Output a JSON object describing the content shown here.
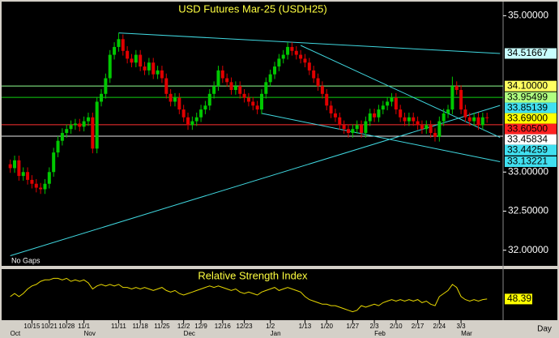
{
  "chart_data": {
    "type": "candlestick",
    "title": "USD Futures Mar-25  (USDH25)",
    "note": "No Gaps",
    "x_unit_label": "Day",
    "up_color": "#00c800",
    "down_color": "#e00000",
    "categories": [
      null,
      null,
      null,
      null,
      null,
      "10/15",
      null,
      null,
      null,
      "10/21",
      null,
      null,
      null,
      "10/28",
      null,
      null,
      null,
      "11/1",
      null,
      null,
      null,
      null,
      null,
      null,
      null,
      "11/11",
      null,
      null,
      null,
      null,
      "11/18",
      null,
      null,
      null,
      null,
      "11/25",
      null,
      null,
      null,
      null,
      "12/2",
      null,
      null,
      null,
      "12/9",
      null,
      null,
      null,
      null,
      "12/16",
      null,
      null,
      null,
      null,
      "12/23",
      null,
      null,
      null,
      null,
      null,
      "1/2",
      null,
      null,
      null,
      null,
      null,
      null,
      null,
      "1/13",
      null,
      null,
      null,
      null,
      "1/20",
      null,
      null,
      null,
      null,
      null,
      "1/27",
      null,
      null,
      null,
      null,
      "2/3",
      null,
      null,
      null,
      null,
      "2/10",
      null,
      null,
      null,
      null,
      "2/17",
      null,
      null,
      null,
      null,
      "2/24",
      null,
      null,
      null,
      null,
      "3/3",
      null,
      null,
      null,
      null,
      null,
      null
    ],
    "months": [
      "Oct",
      null,
      null,
      null,
      null,
      null,
      null,
      null,
      null,
      null,
      null,
      null,
      null,
      null,
      null,
      null,
      null,
      "Nov",
      null,
      null,
      null,
      null,
      null,
      null,
      null,
      null,
      null,
      null,
      null,
      null,
      null,
      null,
      null,
      null,
      null,
      null,
      null,
      null,
      null,
      null,
      "Dec",
      null,
      null,
      null,
      null,
      null,
      null,
      null,
      null,
      null,
      null,
      null,
      null,
      null,
      null,
      null,
      null,
      null,
      null,
      null,
      "Jan",
      null,
      null,
      null,
      null,
      null,
      null,
      null,
      null,
      null,
      null,
      null,
      null,
      null,
      null,
      null,
      null,
      null,
      null,
      null,
      null,
      null,
      null,
      null,
      "Feb",
      null,
      null,
      null,
      null,
      null,
      null,
      null,
      null,
      null,
      null,
      null,
      null,
      null,
      null,
      null,
      null,
      null,
      null,
      null,
      "Mar",
      null,
      null,
      null,
      null,
      null,
      null
    ],
    "open": [
      33.1,
      33.05,
      33.15,
      32.95,
      33.0,
      32.9,
      32.85,
      32.8,
      32.78,
      32.85,
      33.0,
      33.25,
      33.4,
      33.5,
      33.55,
      33.6,
      33.62,
      33.58,
      33.65,
      33.7,
      33.3,
      33.9,
      34.0,
      34.2,
      34.5,
      34.6,
      34.7,
      34.55,
      34.45,
      34.4,
      34.5,
      34.35,
      34.3,
      34.4,
      34.25,
      34.3,
      34.2,
      34.0,
      33.9,
      33.95,
      33.8,
      33.7,
      33.6,
      33.65,
      33.7,
      33.8,
      33.85,
      34.0,
      34.1,
      34.3,
      34.2,
      34.15,
      34.05,
      34.1,
      34.0,
      33.95,
      33.9,
      33.85,
      33.8,
      34.0,
      34.15,
      34.25,
      34.35,
      34.45,
      34.5,
      34.6,
      34.55,
      34.5,
      34.45,
      34.4,
      34.3,
      34.2,
      34.1,
      34.0,
      33.85,
      33.75,
      33.7,
      33.6,
      33.55,
      33.5,
      33.55,
      33.6,
      33.5,
      33.65,
      33.75,
      33.7,
      33.8,
      33.85,
      33.9,
      33.95,
      33.8,
      33.7,
      33.65,
      33.7,
      33.65,
      33.6,
      33.55,
      33.6,
      33.5,
      33.45,
      33.65,
      33.75,
      33.8,
      34.1,
      34.05,
      33.8,
      33.7,
      33.65,
      33.7,
      33.6,
      33.7
    ],
    "high": [
      33.16,
      33.21,
      33.21,
      33.06,
      33.06,
      32.96,
      32.91,
      32.86,
      32.91,
      33.06,
      33.31,
      33.46,
      33.56,
      33.61,
      33.66,
      33.68,
      33.68,
      33.71,
      33.76,
      33.76,
      33.96,
      34.06,
      34.26,
      34.56,
      34.66,
      34.78,
      34.76,
      34.61,
      34.51,
      34.56,
      34.56,
      34.41,
      34.46,
      34.46,
      34.36,
      34.36,
      34.26,
      34.06,
      34.01,
      34.01,
      33.86,
      33.76,
      33.71,
      33.76,
      33.86,
      33.91,
      34.06,
      34.16,
      34.36,
      34.36,
      34.26,
      34.21,
      34.16,
      34.16,
      34.06,
      34.01,
      33.96,
      33.91,
      34.06,
      34.21,
      34.31,
      34.41,
      34.51,
      34.56,
      34.66,
      34.66,
      34.61,
      34.56,
      34.51,
      34.46,
      34.36,
      34.26,
      34.16,
      34.06,
      33.91,
      33.81,
      33.76,
      33.66,
      33.61,
      33.61,
      33.66,
      33.66,
      33.71,
      33.81,
      33.81,
      33.86,
      33.91,
      33.96,
      34.01,
      34.01,
      33.86,
      33.76,
      33.76,
      33.76,
      33.71,
      33.66,
      33.66,
      33.66,
      33.56,
      33.71,
      33.81,
      33.86,
      34.22,
      34.16,
      34.11,
      33.86,
      33.76,
      33.76,
      33.76,
      33.76,
      33.76
    ],
    "low": [
      32.99,
      32.99,
      32.89,
      32.89,
      32.84,
      32.79,
      32.74,
      32.72,
      32.72,
      32.79,
      32.94,
      33.19,
      33.34,
      33.44,
      33.49,
      33.54,
      33.52,
      33.52,
      33.59,
      33.24,
      33.24,
      33.84,
      33.94,
      34.14,
      34.44,
      34.54,
      34.49,
      34.39,
      34.34,
      34.34,
      34.29,
      34.24,
      34.24,
      34.19,
      34.19,
      34.14,
      33.94,
      33.84,
      33.84,
      33.74,
      33.64,
      33.54,
      33.54,
      33.59,
      33.64,
      33.74,
      33.79,
      33.94,
      34.04,
      34.14,
      34.09,
      33.99,
      33.99,
      33.94,
      33.89,
      33.84,
      33.79,
      33.74,
      33.74,
      33.94,
      34.09,
      34.19,
      34.29,
      34.39,
      34.44,
      34.49,
      34.44,
      34.39,
      34.34,
      34.24,
      34.14,
      34.04,
      33.94,
      33.79,
      33.69,
      33.64,
      33.54,
      33.49,
      33.44,
      33.44,
      33.49,
      33.44,
      33.44,
      33.59,
      33.64,
      33.64,
      33.74,
      33.79,
      33.84,
      33.74,
      33.64,
      33.59,
      33.59,
      33.59,
      33.54,
      33.49,
      33.49,
      33.44,
      33.39,
      33.39,
      33.59,
      33.69,
      33.74,
      33.99,
      33.74,
      33.64,
      33.59,
      33.59,
      33.54,
      33.54,
      33.63
    ],
    "close": [
      33.05,
      33.15,
      32.95,
      33.0,
      32.9,
      32.85,
      32.8,
      32.78,
      32.85,
      33.0,
      33.25,
      33.4,
      33.5,
      33.55,
      33.6,
      33.62,
      33.58,
      33.65,
      33.7,
      33.3,
      33.9,
      34.0,
      34.2,
      34.5,
      34.6,
      34.7,
      34.55,
      34.45,
      34.4,
      34.5,
      34.35,
      34.3,
      34.4,
      34.25,
      34.3,
      34.2,
      34.0,
      33.9,
      33.95,
      33.8,
      33.7,
      33.6,
      33.65,
      33.7,
      33.8,
      33.85,
      34.0,
      34.1,
      34.3,
      34.2,
      34.15,
      34.05,
      34.1,
      34.0,
      33.95,
      33.9,
      33.85,
      33.8,
      34.0,
      34.15,
      34.25,
      34.35,
      34.45,
      34.5,
      34.6,
      34.55,
      34.5,
      34.45,
      34.4,
      34.3,
      34.2,
      34.1,
      34.0,
      33.85,
      33.75,
      33.7,
      33.6,
      33.55,
      33.5,
      33.55,
      33.6,
      33.5,
      33.65,
      33.75,
      33.7,
      33.8,
      33.85,
      33.9,
      33.95,
      33.8,
      33.7,
      33.65,
      33.7,
      33.65,
      33.6,
      33.55,
      33.6,
      33.5,
      33.45,
      33.65,
      33.75,
      33.8,
      34.1,
      34.05,
      33.8,
      33.7,
      33.65,
      33.7,
      33.6,
      33.7,
      33.69
    ],
    "ylim": [
      31.8,
      35.18
    ],
    "yticks": [
      {
        "value": 35.0,
        "label": "35.00000"
      },
      {
        "value": 33.0,
        "label": "33.00000"
      },
      {
        "value": 32.5,
        "label": "32.50000"
      },
      {
        "value": 32.0,
        "label": "32.00000"
      }
    ],
    "levels": [
      {
        "value": 34.1,
        "color": "#90ff90"
      },
      {
        "value": 33.95499,
        "color": "#10d010"
      },
      {
        "value": 33.605,
        "color": "#ff3030"
      },
      {
        "value": 33.45834,
        "color": "#e8e8e8"
      }
    ],
    "trendlines": [
      {
        "x": [
          25,
          113
        ],
        "values": [
          34.78,
          34.51667
        ],
        "color": "#40d8e0"
      },
      {
        "x": [
          0,
          113
        ],
        "values": [
          31.93,
          33.85139
        ],
        "color": "#40d8e0"
      },
      {
        "x": [
          67,
          113
        ],
        "values": [
          34.62,
          33.44259
        ],
        "color": "#40d8e0"
      },
      {
        "x": [
          58,
          113
        ],
        "values": [
          33.75,
          33.13221
        ],
        "color": "#40d8e0"
      }
    ],
    "price_labels": [
      {
        "value": 34.51667,
        "label": "34.51667",
        "bg": "#c8ffff",
        "fg": "#000000"
      },
      {
        "value": 34.1,
        "label": "34.10000",
        "bg": "#ffff60",
        "fg": "#000000"
      },
      {
        "value": 33.95499,
        "label": "33.95499",
        "bg": "#b0ff80",
        "fg": "#000000"
      },
      {
        "value": 33.85139,
        "label": "33.85139",
        "bg": "#40e0f0",
        "fg": "#000000"
      },
      {
        "value": 33.69,
        "label": "33.69000",
        "bg": "#ffff00",
        "fg": "#000000"
      },
      {
        "value": 33.605,
        "label": "33.60500",
        "bg": "#ff2020",
        "fg": "#000000"
      },
      {
        "value": 33.45834,
        "label": "33.45834",
        "bg": "#ffffff",
        "fg": "#000000"
      },
      {
        "value": 33.44259,
        "label": "33.44259",
        "bg": "#40e0f0",
        "fg": "#000000"
      },
      {
        "value": 33.13221,
        "label": "33.13221",
        "bg": "#40e0f0",
        "fg": "#000000"
      }
    ],
    "rsi": {
      "title": "Relative Strength Index",
      "color": "#e8d800",
      "label_bg": "#ffff00",
      "ylim": [
        35,
        67
      ],
      "values": [
        50,
        52,
        50,
        52,
        55,
        57,
        58,
        60,
        61,
        61,
        62,
        62,
        61,
        62,
        60,
        61,
        60,
        61,
        59,
        55,
        57,
        58,
        57,
        58,
        57,
        58,
        56,
        56,
        55,
        56,
        55,
        56,
        55,
        54,
        55,
        56,
        54,
        53,
        54,
        52,
        51,
        52,
        53,
        54,
        55,
        56,
        57,
        56,
        57,
        56,
        55,
        54,
        55,
        53,
        52,
        53,
        52,
        51,
        53,
        54,
        55,
        56,
        54,
        55,
        56,
        55,
        54,
        53,
        50,
        48,
        47,
        46,
        45,
        45,
        44,
        44,
        43,
        42,
        41,
        40,
        41,
        44,
        43,
        44,
        45,
        44,
        46,
        47,
        48,
        47,
        48,
        47,
        48,
        47,
        48,
        46,
        47,
        45,
        44,
        50,
        52,
        54,
        58,
        56,
        50,
        48,
        47,
        48,
        47,
        48,
        48.39
      ]
    }
  }
}
